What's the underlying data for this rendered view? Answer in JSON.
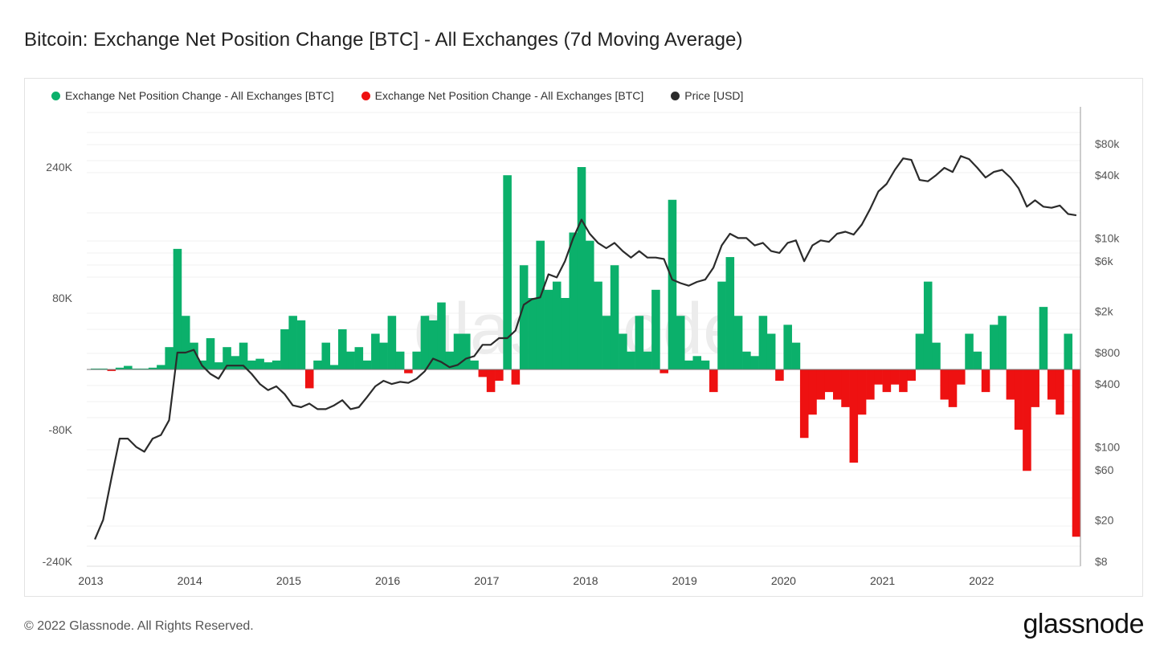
{
  "title": "Bitcoin: Exchange Net Position Change [BTC] - All Exchanges (7d Moving Average)",
  "footer": "© 2022 Glassnode. All Rights Reserved.",
  "logo": "glassnode",
  "watermark": "glassnode",
  "colors": {
    "positive": "#0bb06b",
    "negative": "#ee1111",
    "price": "#2b2b2b"
  },
  "chart_data": {
    "type": "area",
    "title": "Bitcoin: Exchange Net Position Change [BTC] - All Exchanges (7d Moving Average)",
    "legend": [
      "Exchange Net Position Change - All Exchanges [BTC]",
      "Exchange Net Position Change - All Exchanges [BTC]",
      "Price [USD]"
    ],
    "legend_placement": "top-left",
    "x_ticks": [
      "2013",
      "2014",
      "2015",
      "2016",
      "2017",
      "2018",
      "2019",
      "2020",
      "2021",
      "2022"
    ],
    "y_left_ticks": [
      "240K",
      "80K",
      "-80K",
      "-240K"
    ],
    "y_left_tick_values": [
      240,
      80,
      -80,
      -240
    ],
    "y_right_ticks": [
      "$80k",
      "$40k",
      "$10k",
      "$6k",
      "$2k",
      "$800",
      "$400",
      "$100",
      "$60",
      "$20",
      "$8"
    ],
    "y_right_tick_values": [
      80000,
      40000,
      10000,
      6000,
      2000,
      800,
      400,
      100,
      60,
      20,
      8
    ],
    "y_right_scale": "log",
    "x_start": 2013.0,
    "x_step_months": 1,
    "net_position_change_kbtc": [
      1,
      1,
      -2,
      2,
      4,
      1,
      1,
      2,
      5,
      25,
      140,
      60,
      30,
      10,
      35,
      8,
      25,
      15,
      30,
      10,
      12,
      8,
      10,
      45,
      60,
      55,
      -25,
      10,
      30,
      5,
      45,
      20,
      25,
      10,
      40,
      30,
      60,
      20,
      -5,
      20,
      60,
      55,
      75,
      20,
      40,
      40,
      10,
      -10,
      -30,
      -15,
      230,
      -20,
      120,
      80,
      150,
      90,
      100,
      80,
      160,
      240,
      150,
      100,
      60,
      120,
      40,
      20,
      60,
      20,
      90,
      -5,
      200,
      60,
      10,
      15,
      10,
      -30,
      100,
      130,
      60,
      20,
      15,
      60,
      40,
      -15,
      50,
      30,
      -90,
      -60,
      -40,
      -30,
      -40,
      -50,
      -120,
      -60,
      -40,
      -20,
      -30,
      -20,
      -30,
      -15,
      40,
      100,
      30,
      -40,
      -50,
      -20,
      40,
      20,
      -30,
      50,
      60,
      -40,
      -80,
      -130,
      -50,
      70,
      -40,
      -60,
      40,
      -210
    ],
    "price_usd": [
      13,
      20,
      50,
      120,
      120,
      100,
      90,
      120,
      130,
      180,
      800,
      800,
      850,
      600,
      500,
      450,
      600,
      600,
      600,
      500,
      400,
      350,
      380,
      320,
      250,
      240,
      260,
      230,
      230,
      250,
      280,
      230,
      240,
      300,
      380,
      430,
      400,
      420,
      410,
      450,
      530,
      700,
      650,
      580,
      610,
      700,
      740,
      950,
      950,
      1100,
      1100,
      1300,
      2300,
      2600,
      2700,
      4500,
      4200,
      6000,
      10000,
      15000,
      11000,
      9000,
      8000,
      9000,
      7500,
      6500,
      7500,
      6500,
      6500,
      6300,
      4000,
      3700,
      3500,
      3800,
      4000,
      5200,
      8500,
      11000,
      10000,
      10000,
      8500,
      9000,
      7500,
      7200,
      9000,
      9500,
      6000,
      8500,
      9500,
      9200,
      11000,
      11500,
      10800,
      13500,
      19000,
      28000,
      33000,
      45000,
      58000,
      56000,
      36000,
      35000,
      40000,
      47000,
      43000,
      61000,
      57000,
      47000,
      38000,
      43000,
      45000,
      38000,
      30000,
      20000,
      23000,
      20000,
      19500,
      20500,
      17000,
      16500
    ]
  }
}
